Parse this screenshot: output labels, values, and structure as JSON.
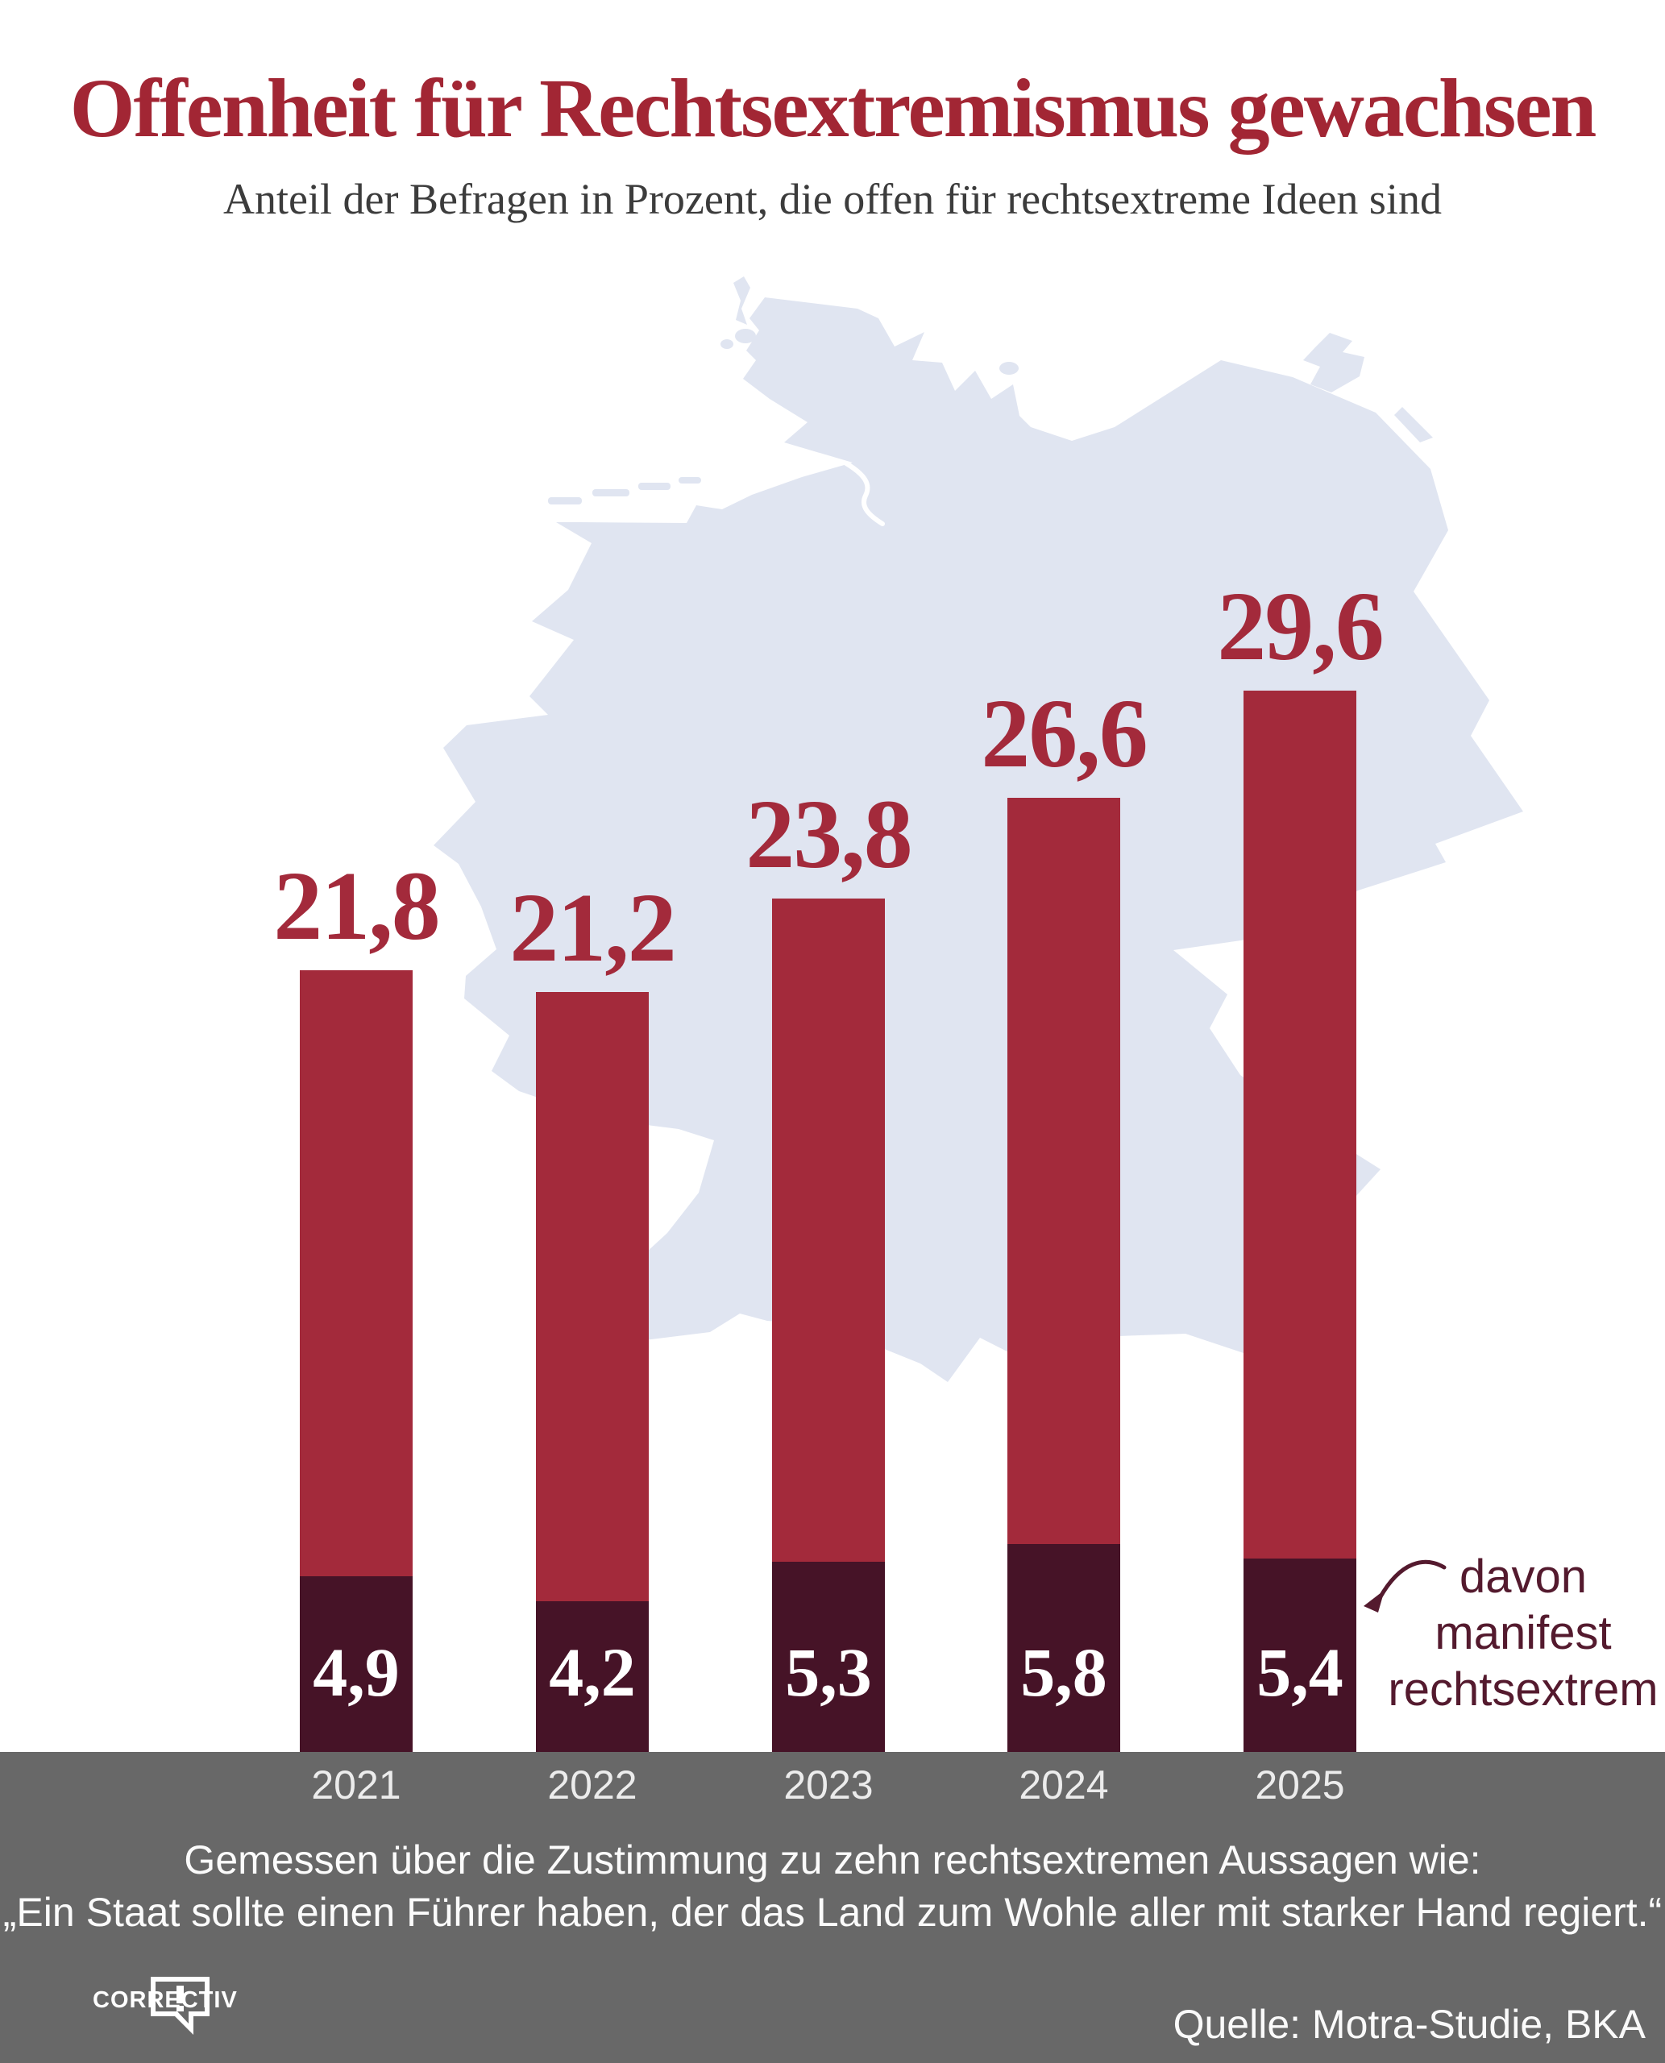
{
  "title": "Offenheit für Rechtsextremismus gewachsen",
  "subtitle": "Anteil der Befragen in Prozent, die offen für rechtsextreme Ideen sind",
  "annotation": {
    "lines": [
      "davon",
      "manifest",
      "rechtsextrem"
    ]
  },
  "footer": {
    "line1": "Gemessen über die Zustimmung zu zehn rechtsextremen Aussagen wie:",
    "line2": "„Ein Staat sollte einen Führer haben, der das Land zum Wohle aller mit starker Hand regiert.“"
  },
  "source": "Quelle: Motra-Studie, BKA",
  "logo": "CORRECTIV",
  "colors": {
    "title_red": "#a22634",
    "bar_red": "#a32a3b",
    "bar_dark": "#461327",
    "map_fill": "#e0e5f1",
    "band_gray": "#686868",
    "annotation_maroon": "#541a2e"
  },
  "chart_data": {
    "type": "bar",
    "title": "Offenheit für Rechtsextremismus gewachsen",
    "subtitle": "Anteil der Befragen in Prozent, die offen für rechtsextreme Ideen sind",
    "categories": [
      "2021",
      "2022",
      "2023",
      "2024",
      "2025"
    ],
    "series": [
      {
        "name": "offen für rechtsextreme Ideen",
        "values": [
          21.8,
          21.2,
          23.8,
          26.6,
          29.6
        ],
        "labels": [
          "21,8",
          "21,2",
          "23,8",
          "26,6",
          "29,6"
        ]
      },
      {
        "name": "davon manifest rechtsextrem",
        "values": [
          4.9,
          4.2,
          5.3,
          5.8,
          5.4
        ],
        "labels": [
          "4,9",
          "4,2",
          "5,3",
          "5,8",
          "5,4"
        ]
      }
    ],
    "unit": "Prozent",
    "ylim": [
      0,
      32
    ],
    "grid": false,
    "background": "Deutschlandkarte"
  }
}
